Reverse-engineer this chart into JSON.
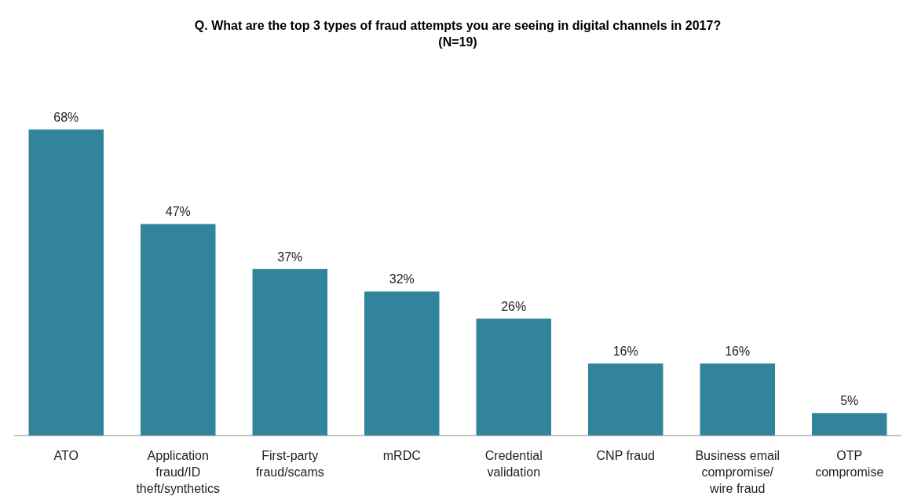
{
  "chart_data": {
    "type": "bar",
    "title": "Q. What are the top 3 types of fraud attempts you are seeing in digital channels in 2017?\n(N=19)",
    "categories": [
      "ATO",
      "Application fraud/ID theft/synthetics",
      "First-party fraud/scams",
      "mRDC",
      "Credential validation",
      "CNP fraud",
      "Business email compromise/ wire fraud",
      "OTP compromise"
    ],
    "values": [
      68,
      47,
      37,
      32,
      26,
      16,
      16,
      5
    ],
    "value_labels": [
      "68%",
      "47%",
      "37%",
      "32%",
      "26%",
      "16%",
      "16%",
      "5%"
    ],
    "color": "#31849b"
  }
}
